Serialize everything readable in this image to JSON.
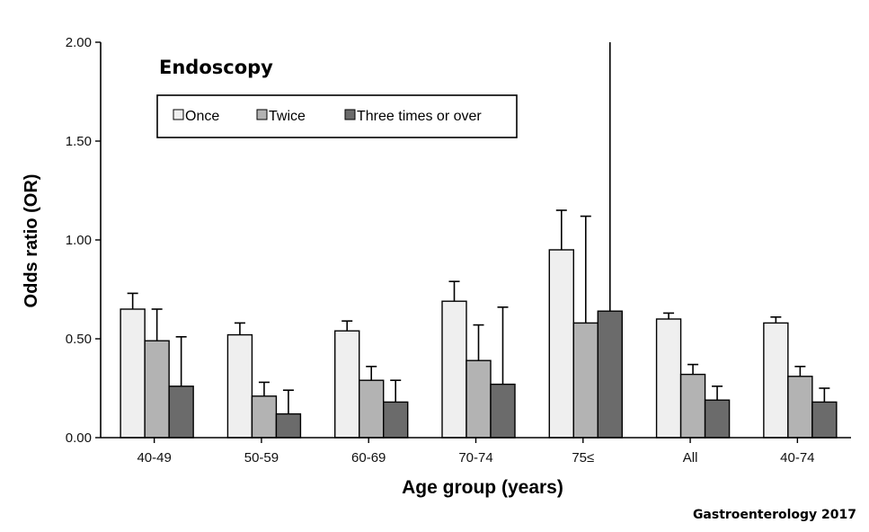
{
  "chart_data": {
    "type": "bar",
    "title": "Endoscopy",
    "xlabel": "Age group (years)",
    "ylabel": "Odds ratio (OR)",
    "ylim": [
      0,
      2.0
    ],
    "yticks": [
      "0.00",
      "0.50",
      "1.00",
      "1.50",
      "2.00"
    ],
    "ytick_values": [
      0,
      0.5,
      1.0,
      1.5,
      2.0
    ],
    "categories": [
      "40-49",
      "50-59",
      "60-69",
      "70-74",
      "75≤",
      "All",
      "40-74"
    ],
    "series": [
      {
        "name": "Once",
        "color": "#efefef",
        "values": [
          0.65,
          0.52,
          0.54,
          0.69,
          0.95,
          0.6,
          0.58
        ],
        "upper": [
          0.73,
          0.58,
          0.59,
          0.79,
          1.15,
          0.63,
          0.61
        ]
      },
      {
        "name": "Twice",
        "color": "#b3b3b3",
        "values": [
          0.49,
          0.21,
          0.29,
          0.39,
          0.58,
          0.32,
          0.31
        ],
        "upper": [
          0.65,
          0.28,
          0.36,
          0.57,
          1.12,
          0.37,
          0.36
        ]
      },
      {
        "name": "Three times or over",
        "color": "#6b6b6b",
        "values": [
          0.26,
          0.12,
          0.18,
          0.27,
          0.64,
          0.19,
          0.18
        ],
        "upper": [
          0.51,
          0.24,
          0.29,
          0.66,
          2.0,
          0.26,
          0.25
        ]
      }
    ],
    "legend_position": "top-left",
    "grid": false,
    "source": "Gastroenterology 2017"
  }
}
